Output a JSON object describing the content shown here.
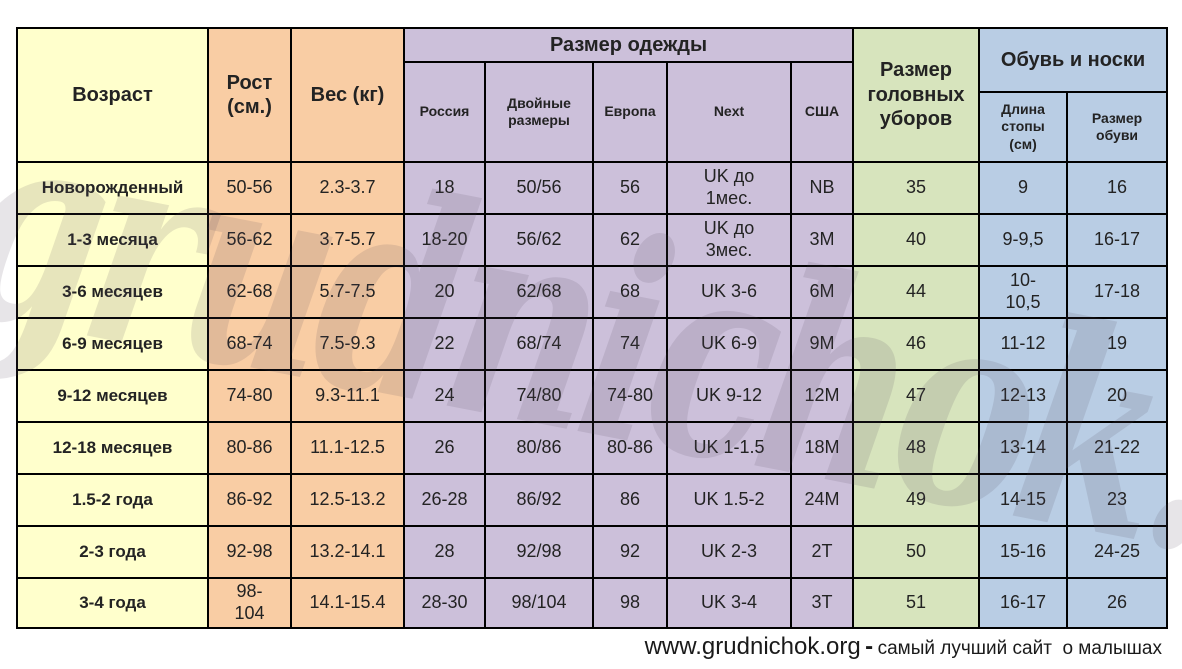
{
  "watermark": "grudnichok.org",
  "colors": {
    "age": "#FFFFCC",
    "measure": "#F9CDA4",
    "clothing": "#CCC0DA",
    "headwear": "#D7E4BD",
    "shoes": "#B9CDE4",
    "border": "#000000",
    "text": "#232323"
  },
  "table": {
    "header": {
      "age": "Возраст",
      "height": "Рост\n(см.)",
      "weight": "Вес (кг)",
      "clothing_group": "Размер одежды",
      "clothing_columns": {
        "russia": "Россия",
        "double_size": "Двойные\nразмеры",
        "europe": "Европа",
        "next": "Next",
        "usa": "США"
      },
      "headwear": "Размер\nголовных\nуборов",
      "shoes_group": "Обувь и носки",
      "shoes_columns": {
        "foot_length": "Длина\nстопы\n(см)",
        "shoe_size": "Размер\nобуви"
      }
    },
    "rows": [
      {
        "age": "Новорожденный",
        "height": "50-56",
        "weight": "2.3-3.7",
        "russia": "18",
        "double_size": "50/56",
        "europe": "56",
        "next": "UK до\n1мес.",
        "usa": "NB",
        "headwear": "35",
        "foot_length": "9",
        "shoe_size": "16"
      },
      {
        "age": "1-3 месяца",
        "height": "56-62",
        "weight": "3.7-5.7",
        "russia": "18-20",
        "double_size": "56/62",
        "europe": "62",
        "next": "UK до\n3мес.",
        "usa": "3M",
        "headwear": "40",
        "foot_length": "9-9,5",
        "shoe_size": "16-17"
      },
      {
        "age": "3-6 месяцев",
        "height": "62-68",
        "weight": "5.7-7.5",
        "russia": "20",
        "double_size": "62/68",
        "europe": "68",
        "next": "UK 3-6",
        "usa": "6M",
        "headwear": "44",
        "foot_length": "10-\n10,5",
        "shoe_size": "17-18"
      },
      {
        "age": "6-9 месяцев",
        "height": "68-74",
        "weight": "7.5-9.3",
        "russia": "22",
        "double_size": "68/74",
        "europe": "74",
        "next": "UK 6-9",
        "usa": "9M",
        "headwear": "46",
        "foot_length": "11-12",
        "shoe_size": "19"
      },
      {
        "age": "9-12 месяцев",
        "height": "74-80",
        "weight": "9.3-11.1",
        "russia": "24",
        "double_size": "74/80",
        "europe": "74-80",
        "next": "UK 9-12",
        "usa": "12M",
        "headwear": "47",
        "foot_length": "12-13",
        "shoe_size": "20"
      },
      {
        "age": "12-18 месяцев",
        "height": "80-86",
        "weight": "11.1-12.5",
        "russia": "26",
        "double_size": "80/86",
        "europe": "80-86",
        "next": "UK 1-1.5",
        "usa": "18M",
        "headwear": "48",
        "foot_length": "13-14",
        "shoe_size": "21-22"
      },
      {
        "age": "1.5-2 года",
        "height": "86-92",
        "weight": "12.5-13.2",
        "russia": "26-28",
        "double_size": "86/92",
        "europe": "86",
        "next": "UK 1.5-2",
        "usa": "24M",
        "headwear": "49",
        "foot_length": "14-15",
        "shoe_size": "23"
      },
      {
        "age": "2-3 года",
        "height": "92-98",
        "weight": "13.2-14.1",
        "russia": "28",
        "double_size": "92/98",
        "europe": "92",
        "next": "UK 2-3",
        "usa": "2T",
        "headwear": "50",
        "foot_length": "15-16",
        "shoe_size": "24-25"
      },
      {
        "age": "3-4 года",
        "height": "98-\n104",
        "weight": "14.1-15.4",
        "russia": "28-30",
        "double_size": "98/104",
        "europe": "98",
        "next": "UK 3-4",
        "usa": "3T",
        "headwear": "51",
        "foot_length": "16-17",
        "shoe_size": "26"
      }
    ]
  },
  "footer": {
    "url": "www.grudnichok.org",
    "separator": "-",
    "tagline": "самый лучший сайт  о малышах"
  }
}
